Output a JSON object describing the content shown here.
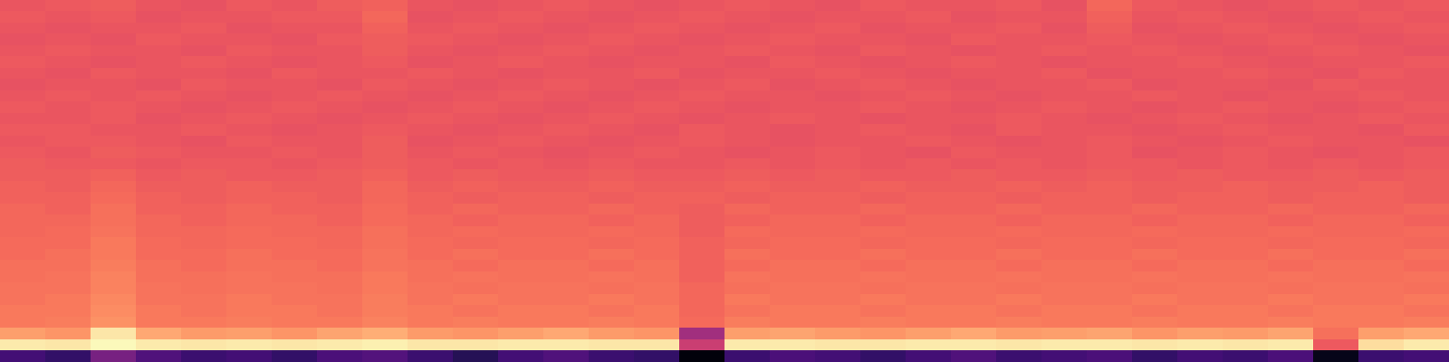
{
  "chart_data": {
    "type": "heatmap",
    "color": "magma",
    "color_range": [
      0,
      1
    ],
    "tick_labels": false,
    "cells": [
      [
        0.64,
        0.65,
        0.66,
        0.64,
        0.63,
        0.65,
        0.64,
        0.66,
        0.67,
        0.64,
        0.63,
        0.64,
        0.65,
        0.64,
        0.63,
        0.64,
        0.65,
        0.64,
        0.63,
        0.65,
        0.64,
        0.64,
        0.65,
        0.63,
        0.68,
        0.65,
        0.64,
        0.63,
        0.64,
        0.65,
        0.64,
        0.65
      ],
      [
        0.65,
        0.64,
        0.65,
        0.63,
        0.64,
        0.64,
        0.65,
        0.65,
        0.68,
        0.63,
        0.64,
        0.65,
        0.64,
        0.63,
        0.64,
        0.65,
        0.64,
        0.63,
        0.64,
        0.64,
        0.65,
        0.63,
        0.64,
        0.64,
        0.67,
        0.64,
        0.65,
        0.64,
        0.63,
        0.64,
        0.65,
        0.64
      ],
      [
        0.64,
        0.63,
        0.64,
        0.64,
        0.65,
        0.63,
        0.64,
        0.64,
        0.67,
        0.64,
        0.65,
        0.64,
        0.63,
        0.64,
        0.65,
        0.64,
        0.63,
        0.64,
        0.65,
        0.63,
        0.64,
        0.64,
        0.65,
        0.63,
        0.66,
        0.63,
        0.64,
        0.65,
        0.64,
        0.63,
        0.64,
        0.65
      ],
      [
        0.63,
        0.64,
        0.63,
        0.65,
        0.64,
        0.64,
        0.63,
        0.65,
        0.66,
        0.65,
        0.64,
        0.63,
        0.64,
        0.65,
        0.64,
        0.63,
        0.64,
        0.65,
        0.64,
        0.64,
        0.63,
        0.65,
        0.64,
        0.64,
        0.65,
        0.64,
        0.63,
        0.64,
        0.65,
        0.64,
        0.63,
        0.64
      ],
      [
        0.64,
        0.65,
        0.64,
        0.64,
        0.63,
        0.65,
        0.64,
        0.64,
        0.66,
        0.64,
        0.63,
        0.64,
        0.65,
        0.64,
        0.63,
        0.64,
        0.65,
        0.64,
        0.63,
        0.65,
        0.64,
        0.63,
        0.64,
        0.65,
        0.64,
        0.65,
        0.64,
        0.63,
        0.64,
        0.65,
        0.64,
        0.63
      ],
      [
        0.65,
        0.64,
        0.63,
        0.64,
        0.65,
        0.64,
        0.63,
        0.64,
        0.65,
        0.63,
        0.64,
        0.65,
        0.64,
        0.63,
        0.64,
        0.64,
        0.63,
        0.65,
        0.64,
        0.63,
        0.64,
        0.65,
        0.64,
        0.63,
        0.64,
        0.64,
        0.65,
        0.64,
        0.63,
        0.64,
        0.64,
        0.65
      ],
      [
        0.64,
        0.63,
        0.65,
        0.64,
        0.64,
        0.63,
        0.65,
        0.64,
        0.64,
        0.65,
        0.64,
        0.63,
        0.64,
        0.64,
        0.65,
        0.63,
        0.64,
        0.64,
        0.65,
        0.64,
        0.63,
        0.64,
        0.64,
        0.65,
        0.63,
        0.64,
        0.64,
        0.65,
        0.64,
        0.63,
        0.65,
        0.64
      ],
      [
        0.63,
        0.64,
        0.64,
        0.63,
        0.65,
        0.64,
        0.64,
        0.63,
        0.65,
        0.64,
        0.63,
        0.64,
        0.65,
        0.64,
        0.63,
        0.64,
        0.65,
        0.63,
        0.64,
        0.65,
        0.64,
        0.63,
        0.64,
        0.64,
        0.65,
        0.63,
        0.64,
        0.64,
        0.63,
        0.65,
        0.64,
        0.64
      ],
      [
        0.64,
        0.65,
        0.64,
        0.65,
        0.64,
        0.63,
        0.64,
        0.65,
        0.64,
        0.63,
        0.64,
        0.65,
        0.64,
        0.63,
        0.64,
        0.65,
        0.64,
        0.64,
        0.63,
        0.64,
        0.65,
        0.64,
        0.63,
        0.64,
        0.64,
        0.65,
        0.64,
        0.63,
        0.64,
        0.64,
        0.65,
        0.64
      ],
      [
        0.65,
        0.64,
        0.65,
        0.64,
        0.63,
        0.64,
        0.65,
        0.64,
        0.63,
        0.64,
        0.65,
        0.64,
        0.63,
        0.64,
        0.65,
        0.64,
        0.63,
        0.64,
        0.64,
        0.65,
        0.64,
        0.63,
        0.64,
        0.65,
        0.64,
        0.63,
        0.64,
        0.65,
        0.64,
        0.63,
        0.64,
        0.65
      ],
      [
        0.64,
        0.64,
        0.65,
        0.63,
        0.64,
        0.65,
        0.64,
        0.63,
        0.64,
        0.65,
        0.64,
        0.63,
        0.64,
        0.65,
        0.64,
        0.63,
        0.64,
        0.65,
        0.64,
        0.63,
        0.64,
        0.64,
        0.65,
        0.64,
        0.63,
        0.64,
        0.65,
        0.64,
        0.63,
        0.64,
        0.65,
        0.64
      ],
      [
        0.65,
        0.65,
        0.64,
        0.64,
        0.65,
        0.64,
        0.63,
        0.64,
        0.65,
        0.64,
        0.63,
        0.64,
        0.65,
        0.64,
        0.63,
        0.65,
        0.64,
        0.63,
        0.64,
        0.65,
        0.64,
        0.63,
        0.65,
        0.64,
        0.64,
        0.63,
        0.64,
        0.65,
        0.64,
        0.64,
        0.63,
        0.65
      ],
      [
        0.64,
        0.65,
        0.65,
        0.64,
        0.63,
        0.65,
        0.64,
        0.64,
        0.66,
        0.63,
        0.64,
        0.65,
        0.64,
        0.63,
        0.64,
        0.65,
        0.64,
        0.63,
        0.64,
        0.64,
        0.65,
        0.64,
        0.63,
        0.64,
        0.65,
        0.64,
        0.63,
        0.64,
        0.65,
        0.64,
        0.64,
        0.63
      ],
      [
        0.65,
        0.64,
        0.66,
        0.65,
        0.64,
        0.64,
        0.65,
        0.64,
        0.66,
        0.64,
        0.65,
        0.64,
        0.63,
        0.64,
        0.65,
        0.64,
        0.63,
        0.64,
        0.65,
        0.64,
        0.63,
        0.65,
        0.64,
        0.64,
        0.65,
        0.63,
        0.64,
        0.65,
        0.64,
        0.63,
        0.64,
        0.65
      ],
      [
        0.66,
        0.65,
        0.65,
        0.64,
        0.65,
        0.65,
        0.64,
        0.65,
        0.66,
        0.65,
        0.64,
        0.65,
        0.64,
        0.65,
        0.64,
        0.64,
        0.65,
        0.64,
        0.65,
        0.64,
        0.65,
        0.64,
        0.65,
        0.64,
        0.65,
        0.65,
        0.64,
        0.65,
        0.64,
        0.65,
        0.64,
        0.65
      ],
      [
        0.66,
        0.66,
        0.67,
        0.65,
        0.66,
        0.65,
        0.65,
        0.66,
        0.67,
        0.65,
        0.66,
        0.65,
        0.65,
        0.66,
        0.65,
        0.65,
        0.66,
        0.65,
        0.66,
        0.65,
        0.65,
        0.66,
        0.65,
        0.65,
        0.66,
        0.65,
        0.66,
        0.65,
        0.65,
        0.66,
        0.65,
        0.66
      ],
      [
        0.67,
        0.66,
        0.68,
        0.66,
        0.66,
        0.67,
        0.66,
        0.66,
        0.68,
        0.66,
        0.67,
        0.66,
        0.66,
        0.67,
        0.66,
        0.66,
        0.67,
        0.66,
        0.66,
        0.67,
        0.66,
        0.66,
        0.67,
        0.66,
        0.67,
        0.66,
        0.66,
        0.67,
        0.66,
        0.66,
        0.67,
        0.66
      ],
      [
        0.67,
        0.67,
        0.69,
        0.67,
        0.66,
        0.67,
        0.67,
        0.66,
        0.68,
        0.67,
        0.66,
        0.67,
        0.67,
        0.66,
        0.67,
        0.67,
        0.66,
        0.67,
        0.67,
        0.66,
        0.67,
        0.67,
        0.66,
        0.67,
        0.67,
        0.66,
        0.67,
        0.67,
        0.66,
        0.67,
        0.67,
        0.66
      ],
      [
        0.68,
        0.67,
        0.7,
        0.67,
        0.67,
        0.68,
        0.67,
        0.67,
        0.69,
        0.67,
        0.68,
        0.67,
        0.67,
        0.68,
        0.67,
        0.66,
        0.68,
        0.67,
        0.67,
        0.68,
        0.67,
        0.67,
        0.68,
        0.67,
        0.67,
        0.68,
        0.67,
        0.67,
        0.68,
        0.67,
        0.67,
        0.68
      ],
      [
        0.68,
        0.68,
        0.7,
        0.68,
        0.67,
        0.68,
        0.68,
        0.67,
        0.69,
        0.68,
        0.67,
        0.68,
        0.68,
        0.67,
        0.68,
        0.66,
        0.67,
        0.68,
        0.68,
        0.67,
        0.68,
        0.68,
        0.67,
        0.68,
        0.68,
        0.67,
        0.68,
        0.68,
        0.67,
        0.68,
        0.68,
        0.67
      ],
      [
        0.68,
        0.69,
        0.71,
        0.68,
        0.68,
        0.69,
        0.68,
        0.68,
        0.7,
        0.68,
        0.69,
        0.68,
        0.68,
        0.69,
        0.68,
        0.66,
        0.69,
        0.68,
        0.68,
        0.69,
        0.68,
        0.68,
        0.69,
        0.68,
        0.68,
        0.69,
        0.68,
        0.68,
        0.69,
        0.68,
        0.68,
        0.69
      ],
      [
        0.69,
        0.69,
        0.72,
        0.69,
        0.68,
        0.69,
        0.69,
        0.68,
        0.7,
        0.69,
        0.68,
        0.69,
        0.69,
        0.68,
        0.69,
        0.67,
        0.68,
        0.69,
        0.69,
        0.68,
        0.69,
        0.69,
        0.68,
        0.69,
        0.69,
        0.68,
        0.69,
        0.69,
        0.68,
        0.69,
        0.69,
        0.68
      ],
      [
        0.69,
        0.7,
        0.72,
        0.69,
        0.69,
        0.7,
        0.69,
        0.69,
        0.71,
        0.69,
        0.7,
        0.69,
        0.69,
        0.7,
        0.69,
        0.67,
        0.7,
        0.69,
        0.69,
        0.7,
        0.69,
        0.69,
        0.7,
        0.69,
        0.69,
        0.7,
        0.69,
        0.69,
        0.7,
        0.69,
        0.69,
        0.7
      ],
      [
        0.7,
        0.7,
        0.73,
        0.7,
        0.69,
        0.7,
        0.7,
        0.69,
        0.71,
        0.7,
        0.69,
        0.7,
        0.7,
        0.69,
        0.7,
        0.67,
        0.69,
        0.7,
        0.7,
        0.69,
        0.7,
        0.7,
        0.69,
        0.7,
        0.7,
        0.69,
        0.7,
        0.7,
        0.69,
        0.7,
        0.7,
        0.69
      ],
      [
        0.7,
        0.71,
        0.74,
        0.7,
        0.7,
        0.71,
        0.7,
        0.7,
        0.72,
        0.7,
        0.71,
        0.7,
        0.7,
        0.71,
        0.7,
        0.67,
        0.71,
        0.7,
        0.7,
        0.71,
        0.7,
        0.7,
        0.71,
        0.7,
        0.7,
        0.71,
        0.7,
        0.7,
        0.71,
        0.7,
        0.7,
        0.71
      ],
      [
        0.71,
        0.71,
        0.74,
        0.71,
        0.7,
        0.71,
        0.71,
        0.7,
        0.72,
        0.71,
        0.7,
        0.71,
        0.71,
        0.7,
        0.71,
        0.68,
        0.7,
        0.71,
        0.71,
        0.7,
        0.71,
        0.71,
        0.7,
        0.71,
        0.71,
        0.7,
        0.71,
        0.71,
        0.7,
        0.71,
        0.71,
        0.7
      ],
      [
        0.71,
        0.72,
        0.75,
        0.71,
        0.71,
        0.72,
        0.71,
        0.71,
        0.73,
        0.71,
        0.72,
        0.71,
        0.71,
        0.72,
        0.71,
        0.68,
        0.72,
        0.71,
        0.71,
        0.72,
        0.71,
        0.71,
        0.72,
        0.71,
        0.71,
        0.72,
        0.71,
        0.71,
        0.72,
        0.71,
        0.71,
        0.72
      ],
      [
        0.72,
        0.72,
        0.76,
        0.72,
        0.71,
        0.72,
        0.72,
        0.71,
        0.73,
        0.72,
        0.71,
        0.72,
        0.72,
        0.71,
        0.72,
        0.68,
        0.71,
        0.72,
        0.72,
        0.71,
        0.72,
        0.72,
        0.71,
        0.72,
        0.72,
        0.71,
        0.72,
        0.72,
        0.71,
        0.72,
        0.72,
        0.71
      ],
      [
        0.72,
        0.73,
        0.77,
        0.72,
        0.72,
        0.73,
        0.72,
        0.72,
        0.74,
        0.72,
        0.73,
        0.72,
        0.72,
        0.73,
        0.72,
        0.69,
        0.73,
        0.72,
        0.72,
        0.73,
        0.72,
        0.72,
        0.73,
        0.72,
        0.72,
        0.73,
        0.72,
        0.72,
        0.73,
        0.72,
        0.72,
        0.73
      ],
      [
        0.8,
        0.78,
        0.95,
        0.82,
        0.79,
        0.8,
        0.78,
        0.81,
        0.83,
        0.79,
        0.78,
        0.8,
        0.82,
        0.79,
        0.78,
        0.45,
        0.8,
        0.81,
        0.79,
        0.78,
        0.8,
        0.82,
        0.79,
        0.8,
        0.81,
        0.78,
        0.8,
        0.79,
        0.81,
        0.7,
        0.8,
        0.82
      ],
      [
        0.96,
        0.95,
        0.99,
        0.96,
        0.95,
        0.96,
        0.95,
        0.96,
        0.97,
        0.95,
        0.95,
        0.96,
        0.96,
        0.95,
        0.95,
        0.55,
        0.96,
        0.96,
        0.95,
        0.95,
        0.96,
        0.96,
        0.95,
        0.96,
        0.96,
        0.95,
        0.96,
        0.95,
        0.96,
        0.65,
        0.93,
        0.96
      ],
      [
        0.22,
        0.18,
        0.35,
        0.25,
        0.2,
        0.22,
        0.18,
        0.24,
        0.26,
        0.2,
        0.15,
        0.22,
        0.25,
        0.2,
        0.18,
        0.02,
        0.2,
        0.24,
        0.22,
        0.18,
        0.22,
        0.25,
        0.2,
        0.22,
        0.24,
        0.18,
        0.22,
        0.2,
        0.24,
        0.05,
        0.2,
        0.22
      ]
    ]
  }
}
